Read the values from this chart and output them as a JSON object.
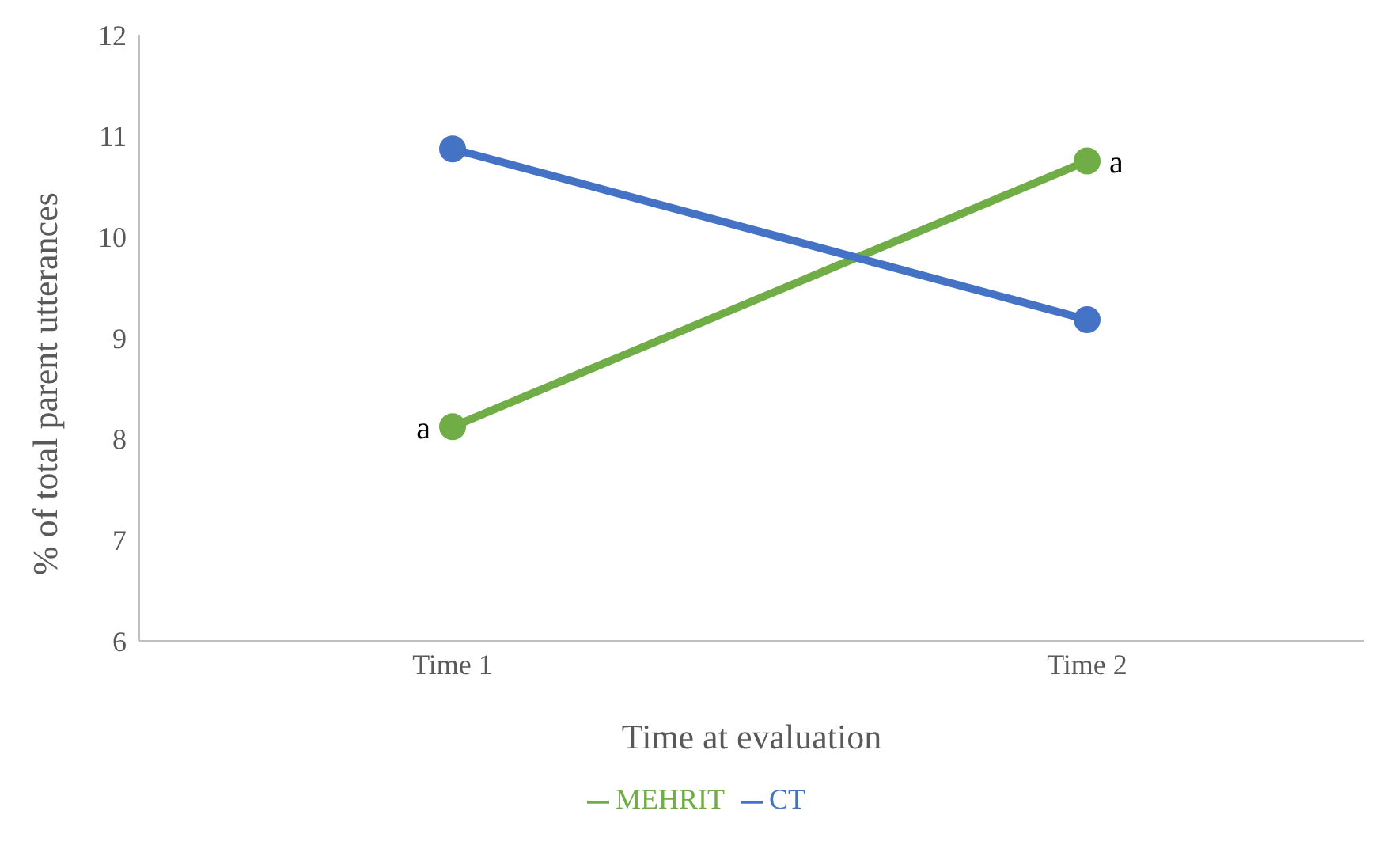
{
  "chart_data": {
    "type": "line",
    "xlabel": "Time at evaluation",
    "ylabel": "% of total parent utterances",
    "categories": [
      "Time 1",
      "Time 2"
    ],
    "series": [
      {
        "name": "MEHRIT",
        "color": "#70ad47",
        "values": [
          8.12,
          10.75
        ]
      },
      {
        "name": "CT",
        "color": "#4472c4",
        "values": [
          10.87,
          9.18
        ]
      }
    ],
    "ylim": [
      6,
      12
    ],
    "yticks": [
      6,
      7,
      8,
      9,
      10,
      11,
      12
    ],
    "grid": false,
    "legend": "bottom",
    "marker": "circle",
    "line_style": "solid",
    "annotations": [
      {
        "text": "a",
        "x": "Time 1",
        "y": 8.12
      },
      {
        "text": "a",
        "x": "Time 2",
        "y": 10.75
      }
    ]
  }
}
